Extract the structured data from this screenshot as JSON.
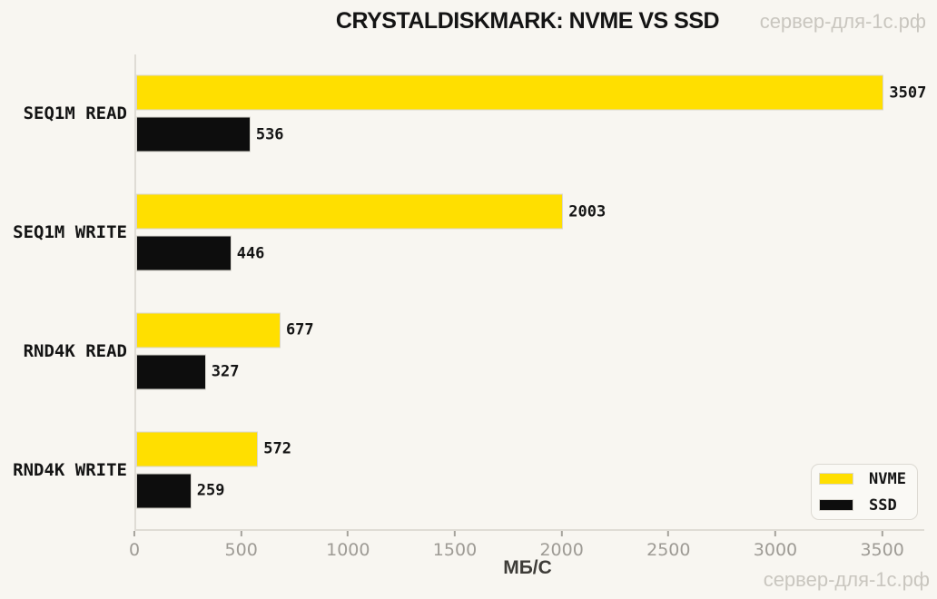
{
  "watermark": "сервер-для-1с.рф",
  "colors": {
    "background": "#F8F6F1",
    "bar_edge": "#D9D6CF",
    "axis_line": "#DFDCD5",
    "tick_label": "#9E9B95",
    "text": "#141414",
    "watermark": "#C9C6BF"
  },
  "chart_data": {
    "type": "bar",
    "orientation": "horizontal",
    "title": "CRYSTALDISKMARK: NVME VS SSD",
    "xlabel": "МБ/С",
    "ylabel": "",
    "categories": [
      "SEQ1M READ",
      "SEQ1M WRITE",
      "RND4K READ",
      "RND4K WRITE"
    ],
    "series": [
      {
        "name": "NVME",
        "color": "#FFDF00",
        "values": [
          3507,
          2003,
          677,
          572
        ]
      },
      {
        "name": "SSD",
        "color": "#0D0D0D",
        "values": [
          536,
          446,
          327,
          259
        ]
      }
    ],
    "xticks": [
      0,
      500,
      1000,
      1500,
      2000,
      2500,
      3000,
      3500
    ],
    "xlim": [
      0,
      3680
    ],
    "grid": false,
    "legend_position": "lower right"
  }
}
